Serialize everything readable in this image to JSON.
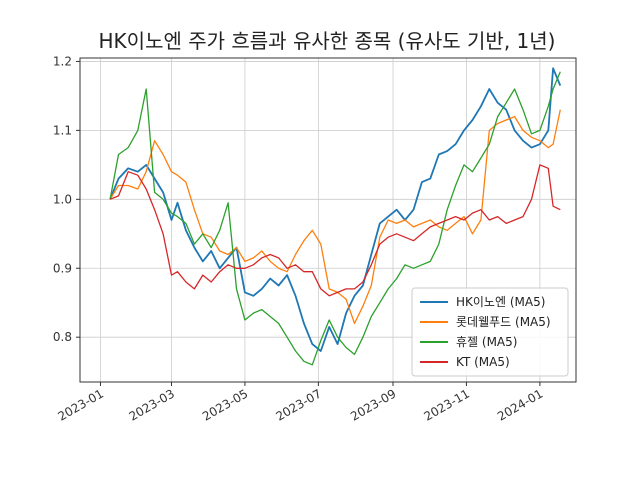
{
  "chart_data": {
    "type": "line",
    "title": "HK이노엔 주가 흐름과 유사한 종목 (유사도 기반, 1년)",
    "xlabel": "",
    "ylabel": "",
    "grid": true,
    "legend_position": "lower-right",
    "xlim": [
      "2022-12-15",
      "2024-01-31"
    ],
    "ylim": [
      0.735,
      1.205
    ],
    "x_ticks": [
      "2023-01",
      "2023-03",
      "2023-05",
      "2023-07",
      "2023-09",
      "2023-11",
      "2024-01"
    ],
    "y_ticks": [
      "0.8",
      "0.9",
      "1.0",
      "1.1",
      "1.2"
    ],
    "series": [
      {
        "name": "HK이노엔 (MA5)",
        "color": "#1f77b4",
        "points": [
          [
            "2023-01-09",
            1.0
          ],
          [
            "2023-01-16",
            1.03
          ],
          [
            "2023-01-24",
            1.045
          ],
          [
            "2023-02-01",
            1.04
          ],
          [
            "2023-02-08",
            1.05
          ],
          [
            "2023-02-15",
            1.03
          ],
          [
            "2023-02-22",
            1.01
          ],
          [
            "2023-03-01",
            0.97
          ],
          [
            "2023-03-06",
            0.995
          ],
          [
            "2023-03-13",
            0.955
          ],
          [
            "2023-03-20",
            0.93
          ],
          [
            "2023-03-27",
            0.91
          ],
          [
            "2023-04-03",
            0.925
          ],
          [
            "2023-04-10",
            0.9
          ],
          [
            "2023-04-17",
            0.915
          ],
          [
            "2023-04-24",
            0.93
          ],
          [
            "2023-05-01",
            0.865
          ],
          [
            "2023-05-08",
            0.86
          ],
          [
            "2023-05-15",
            0.87
          ],
          [
            "2023-05-22",
            0.885
          ],
          [
            "2023-05-29",
            0.875
          ],
          [
            "2023-06-05",
            0.89
          ],
          [
            "2023-06-12",
            0.86
          ],
          [
            "2023-06-19",
            0.82
          ],
          [
            "2023-06-26",
            0.79
          ],
          [
            "2023-07-03",
            0.78
          ],
          [
            "2023-07-10",
            0.815
          ],
          [
            "2023-07-17",
            0.79
          ],
          [
            "2023-07-24",
            0.835
          ],
          [
            "2023-07-31",
            0.86
          ],
          [
            "2023-08-07",
            0.875
          ],
          [
            "2023-08-14",
            0.92
          ],
          [
            "2023-08-21",
            0.965
          ],
          [
            "2023-08-28",
            0.975
          ],
          [
            "2023-09-04",
            0.985
          ],
          [
            "2023-09-11",
            0.97
          ],
          [
            "2023-09-18",
            0.985
          ],
          [
            "2023-09-25",
            1.025
          ],
          [
            "2023-10-02",
            1.03
          ],
          [
            "2023-10-09",
            1.065
          ],
          [
            "2023-10-16",
            1.07
          ],
          [
            "2023-10-23",
            1.08
          ],
          [
            "2023-10-30",
            1.1
          ],
          [
            "2023-11-06",
            1.115
          ],
          [
            "2023-11-13",
            1.135
          ],
          [
            "2023-11-20",
            1.16
          ],
          [
            "2023-11-27",
            1.14
          ],
          [
            "2023-12-04",
            1.13
          ],
          [
            "2023-12-11",
            1.1
          ],
          [
            "2023-12-18",
            1.085
          ],
          [
            "2023-12-25",
            1.075
          ],
          [
            "2024-01-01",
            1.08
          ],
          [
            "2024-01-08",
            1.1
          ],
          [
            "2024-01-12",
            1.19
          ],
          [
            "2024-01-18",
            1.165
          ]
        ]
      },
      {
        "name": "롯데웰푸드 (MA5)",
        "color": "#ff7f0e",
        "points": [
          [
            "2023-01-09",
            1.0
          ],
          [
            "2023-01-16",
            1.02
          ],
          [
            "2023-01-24",
            1.02
          ],
          [
            "2023-02-01",
            1.015
          ],
          [
            "2023-02-08",
            1.04
          ],
          [
            "2023-02-15",
            1.085
          ],
          [
            "2023-02-22",
            1.065
          ],
          [
            "2023-03-01",
            1.04
          ],
          [
            "2023-03-06",
            1.035
          ],
          [
            "2023-03-13",
            1.025
          ],
          [
            "2023-03-20",
            0.985
          ],
          [
            "2023-03-27",
            0.95
          ],
          [
            "2023-04-03",
            0.945
          ],
          [
            "2023-04-10",
            0.925
          ],
          [
            "2023-04-17",
            0.92
          ],
          [
            "2023-04-24",
            0.93
          ],
          [
            "2023-05-01",
            0.91
          ],
          [
            "2023-05-08",
            0.915
          ],
          [
            "2023-05-15",
            0.925
          ],
          [
            "2023-05-22",
            0.91
          ],
          [
            "2023-05-29",
            0.9
          ],
          [
            "2023-06-05",
            0.895
          ],
          [
            "2023-06-12",
            0.92
          ],
          [
            "2023-06-19",
            0.94
          ],
          [
            "2023-06-26",
            0.955
          ],
          [
            "2023-07-03",
            0.935
          ],
          [
            "2023-07-10",
            0.87
          ],
          [
            "2023-07-17",
            0.865
          ],
          [
            "2023-07-24",
            0.855
          ],
          [
            "2023-07-31",
            0.82
          ],
          [
            "2023-08-07",
            0.845
          ],
          [
            "2023-08-14",
            0.875
          ],
          [
            "2023-08-21",
            0.945
          ],
          [
            "2023-08-28",
            0.97
          ],
          [
            "2023-09-04",
            0.965
          ],
          [
            "2023-09-11",
            0.97
          ],
          [
            "2023-09-18",
            0.96
          ],
          [
            "2023-09-25",
            0.965
          ],
          [
            "2023-10-02",
            0.97
          ],
          [
            "2023-10-09",
            0.96
          ],
          [
            "2023-10-16",
            0.955
          ],
          [
            "2023-10-23",
            0.965
          ],
          [
            "2023-10-30",
            0.975
          ],
          [
            "2023-11-06",
            0.95
          ],
          [
            "2023-11-13",
            0.97
          ],
          [
            "2023-11-20",
            1.1
          ],
          [
            "2023-11-27",
            1.11
          ],
          [
            "2023-12-04",
            1.115
          ],
          [
            "2023-12-11",
            1.12
          ],
          [
            "2023-12-18",
            1.1
          ],
          [
            "2023-12-25",
            1.09
          ],
          [
            "2024-01-01",
            1.085
          ],
          [
            "2024-01-08",
            1.075
          ],
          [
            "2024-01-12",
            1.08
          ],
          [
            "2024-01-18",
            1.13
          ]
        ]
      },
      {
        "name": "휴젤 (MA5)",
        "color": "#2ca02c",
        "points": [
          [
            "2023-01-09",
            1.0
          ],
          [
            "2023-01-16",
            1.065
          ],
          [
            "2023-01-24",
            1.075
          ],
          [
            "2023-02-01",
            1.1
          ],
          [
            "2023-02-08",
            1.16
          ],
          [
            "2023-02-15",
            1.01
          ],
          [
            "2023-02-22",
            1.0
          ],
          [
            "2023-03-01",
            0.98
          ],
          [
            "2023-03-06",
            0.975
          ],
          [
            "2023-03-13",
            0.965
          ],
          [
            "2023-03-20",
            0.935
          ],
          [
            "2023-03-27",
            0.95
          ],
          [
            "2023-04-03",
            0.93
          ],
          [
            "2023-04-10",
            0.955
          ],
          [
            "2023-04-17",
            0.995
          ],
          [
            "2023-04-24",
            0.87
          ],
          [
            "2023-05-01",
            0.825
          ],
          [
            "2023-05-08",
            0.835
          ],
          [
            "2023-05-15",
            0.84
          ],
          [
            "2023-05-22",
            0.83
          ],
          [
            "2023-05-29",
            0.82
          ],
          [
            "2023-06-05",
            0.8
          ],
          [
            "2023-06-12",
            0.78
          ],
          [
            "2023-06-19",
            0.765
          ],
          [
            "2023-06-26",
            0.76
          ],
          [
            "2023-07-03",
            0.795
          ],
          [
            "2023-07-10",
            0.825
          ],
          [
            "2023-07-17",
            0.8
          ],
          [
            "2023-07-24",
            0.785
          ],
          [
            "2023-07-31",
            0.775
          ],
          [
            "2023-08-07",
            0.8
          ],
          [
            "2023-08-14",
            0.83
          ],
          [
            "2023-08-21",
            0.85
          ],
          [
            "2023-08-28",
            0.87
          ],
          [
            "2023-09-04",
            0.885
          ],
          [
            "2023-09-11",
            0.905
          ],
          [
            "2023-09-18",
            0.9
          ],
          [
            "2023-09-25",
            0.905
          ],
          [
            "2023-10-02",
            0.91
          ],
          [
            "2023-10-09",
            0.935
          ],
          [
            "2023-10-16",
            0.985
          ],
          [
            "2023-10-23",
            1.02
          ],
          [
            "2023-10-30",
            1.05
          ],
          [
            "2023-11-06",
            1.04
          ],
          [
            "2023-11-13",
            1.06
          ],
          [
            "2023-11-20",
            1.08
          ],
          [
            "2023-11-27",
            1.12
          ],
          [
            "2023-12-04",
            1.14
          ],
          [
            "2023-12-11",
            1.16
          ],
          [
            "2023-12-18",
            1.13
          ],
          [
            "2023-12-25",
            1.095
          ],
          [
            "2024-01-01",
            1.1
          ],
          [
            "2024-01-08",
            1.135
          ],
          [
            "2024-01-12",
            1.16
          ],
          [
            "2024-01-18",
            1.185
          ]
        ]
      },
      {
        "name": "KT (MA5)",
        "color": "#d62728",
        "points": [
          [
            "2023-01-09",
            1.0
          ],
          [
            "2023-01-16",
            1.005
          ],
          [
            "2023-01-24",
            1.04
          ],
          [
            "2023-02-01",
            1.035
          ],
          [
            "2023-02-08",
            1.015
          ],
          [
            "2023-02-15",
            0.985
          ],
          [
            "2023-02-22",
            0.95
          ],
          [
            "2023-03-01",
            0.89
          ],
          [
            "2023-03-06",
            0.895
          ],
          [
            "2023-03-13",
            0.88
          ],
          [
            "2023-03-20",
            0.87
          ],
          [
            "2023-03-27",
            0.89
          ],
          [
            "2023-04-03",
            0.88
          ],
          [
            "2023-04-10",
            0.895
          ],
          [
            "2023-04-17",
            0.905
          ],
          [
            "2023-04-24",
            0.9
          ],
          [
            "2023-05-01",
            0.9
          ],
          [
            "2023-05-08",
            0.905
          ],
          [
            "2023-05-15",
            0.915
          ],
          [
            "2023-05-22",
            0.92
          ],
          [
            "2023-05-29",
            0.915
          ],
          [
            "2023-06-05",
            0.9
          ],
          [
            "2023-06-12",
            0.905
          ],
          [
            "2023-06-19",
            0.895
          ],
          [
            "2023-06-26",
            0.895
          ],
          [
            "2023-07-03",
            0.87
          ],
          [
            "2023-07-10",
            0.86
          ],
          [
            "2023-07-17",
            0.865
          ],
          [
            "2023-07-24",
            0.87
          ],
          [
            "2023-07-31",
            0.87
          ],
          [
            "2023-08-07",
            0.88
          ],
          [
            "2023-08-14",
            0.905
          ],
          [
            "2023-08-21",
            0.935
          ],
          [
            "2023-08-28",
            0.945
          ],
          [
            "2023-09-04",
            0.95
          ],
          [
            "2023-09-11",
            0.945
          ],
          [
            "2023-09-18",
            0.94
          ],
          [
            "2023-09-25",
            0.95
          ],
          [
            "2023-10-02",
            0.96
          ],
          [
            "2023-10-09",
            0.965
          ],
          [
            "2023-10-16",
            0.97
          ],
          [
            "2023-10-23",
            0.975
          ],
          [
            "2023-10-30",
            0.97
          ],
          [
            "2023-11-06",
            0.98
          ],
          [
            "2023-11-13",
            0.985
          ],
          [
            "2023-11-20",
            0.97
          ],
          [
            "2023-11-27",
            0.975
          ],
          [
            "2023-12-04",
            0.965
          ],
          [
            "2023-12-11",
            0.97
          ],
          [
            "2023-12-18",
            0.975
          ],
          [
            "2023-12-25",
            1.0
          ],
          [
            "2024-01-01",
            1.05
          ],
          [
            "2024-01-08",
            1.045
          ],
          [
            "2024-01-12",
            0.99
          ],
          [
            "2024-01-18",
            0.985
          ]
        ]
      }
    ]
  }
}
